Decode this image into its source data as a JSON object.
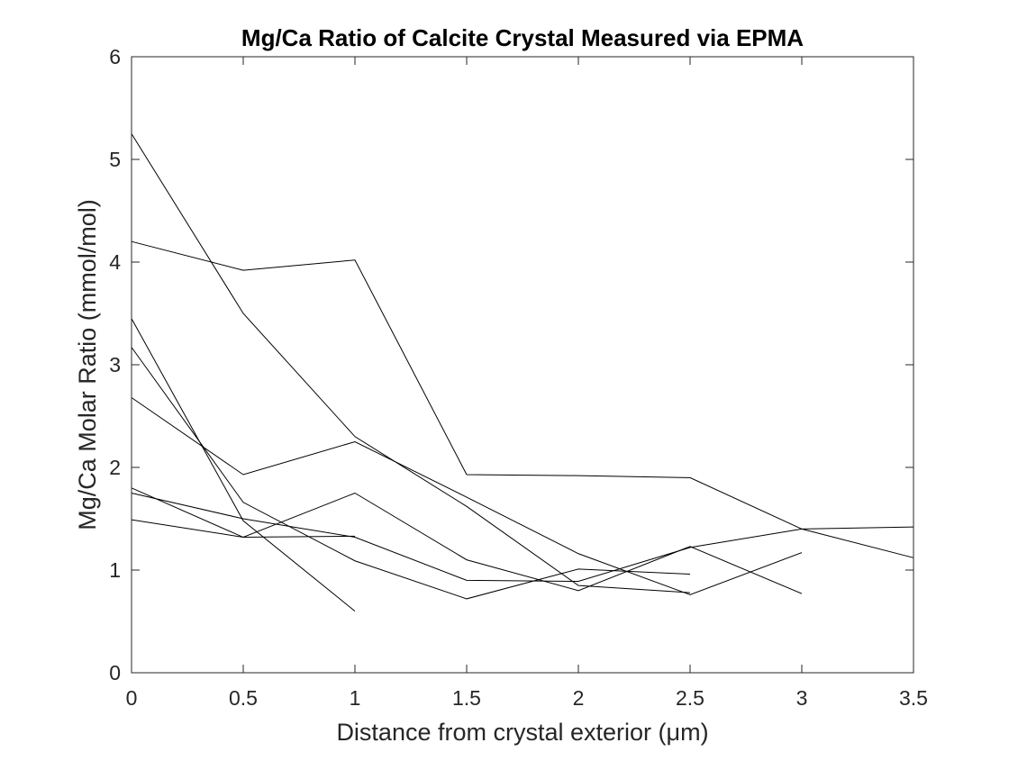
{
  "chart_data": {
    "type": "line",
    "title": "Mg/Ca Ratio of Calcite Crystal Measured via EPMA",
    "xlabel": "Distance from crystal exterior (μm)",
    "ylabel": "Mg/Ca Molar Ratio (mmol/mol)",
    "xlim": [
      0,
      3.5
    ],
    "ylim": [
      0,
      6
    ],
    "xticks": [
      0,
      0.5,
      1,
      1.5,
      2,
      2.5,
      3,
      3.5
    ],
    "xtick_labels": [
      "0",
      "0.5",
      "1",
      "1.5",
      "2",
      "2.5",
      "3",
      "3.5"
    ],
    "yticks": [
      0,
      1,
      2,
      3,
      4,
      5,
      6
    ],
    "ytick_labels": [
      "0",
      "1",
      "2",
      "3",
      "4",
      "5",
      "6"
    ],
    "grid": false,
    "box": true,
    "line_color": "#000000",
    "series": [
      {
        "x": [
          0,
          0.5,
          1,
          1.5,
          2,
          2.5
        ],
        "y": [
          5.25,
          3.5,
          2.3,
          1.62,
          0.85,
          0.78
        ]
      },
      {
        "x": [
          0,
          0.5,
          1,
          1.5,
          2,
          2.5,
          3,
          3.5
        ],
        "y": [
          4.2,
          3.92,
          4.02,
          1.93,
          1.92,
          1.9,
          1.4,
          1.12
        ]
      },
      {
        "x": [
          0,
          0.5,
          1
        ],
        "y": [
          3.45,
          1.48,
          0.6
        ]
      },
      {
        "x": [
          0,
          0.5,
          1,
          1.5,
          2,
          2.5
        ],
        "y": [
          3.17,
          1.66,
          1.09,
          0.72,
          1.01,
          0.96
        ]
      },
      {
        "x": [
          0,
          0.5,
          1,
          1.5,
          2,
          2.5,
          3
        ],
        "y": [
          2.68,
          1.93,
          2.25,
          1.71,
          1.16,
          0.76,
          1.17
        ]
      },
      {
        "x": [
          0,
          0.5,
          1,
          1.5,
          2,
          2.5,
          3
        ],
        "y": [
          1.8,
          1.32,
          1.75,
          1.1,
          0.8,
          1.23,
          0.77
        ]
      },
      {
        "x": [
          0,
          0.5,
          1,
          1.5,
          2,
          2.5,
          3,
          3.5
        ],
        "y": [
          1.75,
          1.5,
          1.32,
          0.9,
          0.89,
          1.22,
          1.4,
          1.42
        ]
      },
      {
        "x": [
          0,
          0.5,
          1
        ],
        "y": [
          1.49,
          1.32,
          1.33
        ]
      }
    ]
  }
}
